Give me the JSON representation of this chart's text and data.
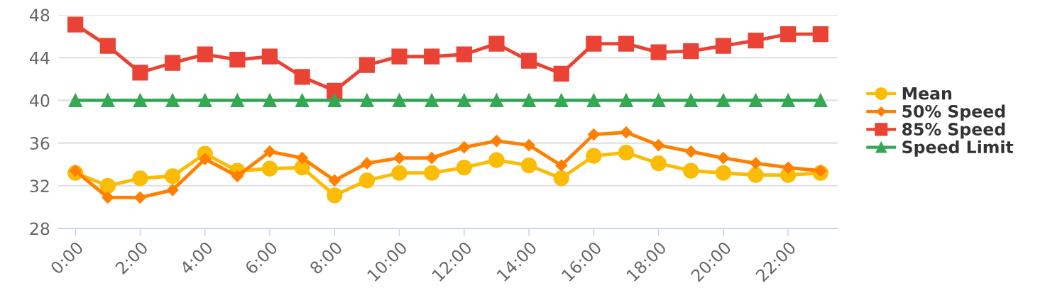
{
  "chart_data": {
    "type": "line",
    "categories": [
      "0:00",
      null,
      "2:00",
      null,
      "4:00",
      null,
      "6:00",
      null,
      "8:00",
      null,
      "10:00",
      null,
      "12:00",
      null,
      "14:00",
      null,
      "16:00",
      null,
      "18:00",
      null,
      "20:00",
      null,
      "22:00",
      null
    ],
    "series": [
      {
        "name": "Mean",
        "color": "#fbbc05",
        "marker": "circle",
        "values": [
          33.2,
          32.0,
          32.7,
          32.9,
          35.0,
          33.4,
          33.6,
          33.7,
          31.1,
          32.5,
          33.2,
          33.2,
          33.7,
          34.4,
          33.9,
          32.7,
          34.8,
          35.1,
          34.1,
          33.4,
          33.2,
          33.0,
          33.0,
          33.2
        ]
      },
      {
        "name": "50% Speed",
        "color": "#ff8000",
        "marker": "diamond",
        "values": [
          33.4,
          30.9,
          30.9,
          31.6,
          34.5,
          32.9,
          35.2,
          34.6,
          32.5,
          34.1,
          34.6,
          34.6,
          35.6,
          36.2,
          35.8,
          33.9,
          36.8,
          37.0,
          35.8,
          35.2,
          34.6,
          34.1,
          33.7,
          33.4
        ]
      },
      {
        "name": "85% Speed",
        "color": "#ea4335",
        "marker": "square",
        "values": [
          47.1,
          45.1,
          42.6,
          43.5,
          44.3,
          43.8,
          44.1,
          42.2,
          40.9,
          43.3,
          44.1,
          44.1,
          44.3,
          45.3,
          43.7,
          42.5,
          45.3,
          45.3,
          44.5,
          44.6,
          45.1,
          45.6,
          46.2,
          46.2
        ]
      },
      {
        "name": "Speed Limit",
        "color": "#34a853",
        "marker": "triangle",
        "values": [
          40,
          40,
          40,
          40,
          40,
          40,
          40,
          40,
          40,
          40,
          40,
          40,
          40,
          40,
          40,
          40,
          40,
          40,
          40,
          40,
          40,
          40,
          40,
          40
        ]
      }
    ],
    "ylim": [
      28,
      48
    ],
    "yticks": [
      28,
      32,
      36,
      40,
      44,
      48
    ],
    "grid": "y",
    "legend": "right",
    "line_style": "solid"
  }
}
